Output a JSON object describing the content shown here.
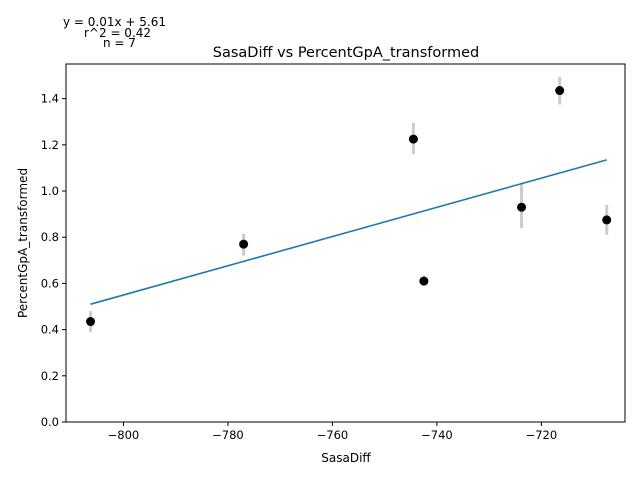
{
  "chart_data": {
    "type": "scatter",
    "title": "SasaDiff vs PercentGpA_transformed",
    "xlabel": "SasaDiff",
    "ylabel": "PercentGpA_transformed",
    "xlim": [
      -811,
      -704
    ],
    "ylim": [
      0,
      1.55
    ],
    "x_ticks": [
      -800,
      -780,
      -760,
      -740,
      -720
    ],
    "x_tick_labels": [
      "−800",
      "−780",
      "−760",
      "−740",
      "−720"
    ],
    "y_ticks": [
      0.0,
      0.2,
      0.4,
      0.6,
      0.8,
      1.0,
      1.2,
      1.4
    ],
    "y_tick_labels": [
      "0.0",
      "0.2",
      "0.4",
      "0.6",
      "0.8",
      "1.0",
      "1.2",
      "1.4"
    ],
    "grid": false,
    "points": [
      {
        "x": -806.3,
        "y": 0.435,
        "err_low": 0.39,
        "err_high": 0.48
      },
      {
        "x": -777.0,
        "y": 0.77,
        "err_low": 0.72,
        "err_high": 0.815
      },
      {
        "x": -744.5,
        "y": 1.225,
        "err_low": 1.16,
        "err_high": 1.295
      },
      {
        "x": -742.5,
        "y": 0.61,
        "err_low": 0.59,
        "err_high": 0.635
      },
      {
        "x": -723.8,
        "y": 0.93,
        "err_low": 0.84,
        "err_high": 1.035
      },
      {
        "x": -716.5,
        "y": 1.435,
        "err_low": 1.375,
        "err_high": 1.495
      },
      {
        "x": -707.5,
        "y": 0.875,
        "err_low": 0.81,
        "err_high": 0.94
      }
    ],
    "fit_line": {
      "x_start": -806.3,
      "y_start": 0.51,
      "x_end": -707.5,
      "y_end": 1.135
    },
    "colors": {
      "points": "#000000",
      "errorbars": "#cccccc",
      "fit": "#1f77b4"
    },
    "annotations": [
      "y = 0.01x + 5.61",
      "r^2 = 0.42",
      "n = 7"
    ]
  }
}
